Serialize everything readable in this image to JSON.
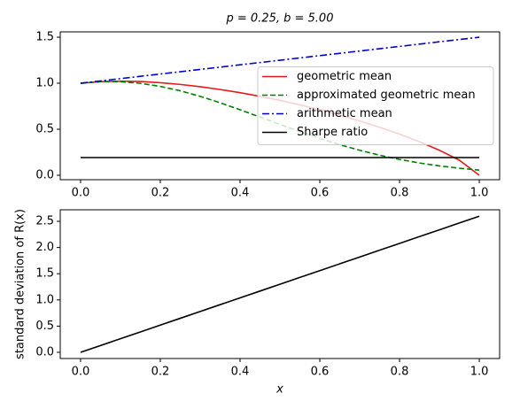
{
  "chart_data": [
    {
      "type": "line",
      "title": "p = 0.25, b = 5.00",
      "x": [
        0,
        0.05,
        0.1,
        0.15,
        0.2,
        0.25,
        0.3,
        0.35,
        0.4,
        0.45,
        0.5,
        0.55,
        0.6,
        0.65,
        0.7,
        0.75,
        0.8,
        0.85,
        0.9,
        0.95,
        1
      ],
      "series": [
        {
          "name": "geometric mean",
          "color": "#e41a1c",
          "linestyle": "solid",
          "values": [
            1,
            1.0175,
            1.0226,
            1.0184,
            1.006,
            0.987,
            0.9621,
            0.9318,
            0.8972,
            0.8577,
            0.8133,
            0.7645,
            0.7114,
            0.6532,
            0.5905,
            0.522,
            0.4472,
            0.3648,
            0.2722,
            0.1637,
            0
          ]
        },
        {
          "name": "approximated geometric mean",
          "color": "#008000",
          "linestyle": "dashed",
          "values": [
            1,
            1.0167,
            1.0164,
            0.9991,
            0.9656,
            0.9177,
            0.8575,
            0.7879,
            0.7118,
            0.6323,
            0.5523,
            0.4743,
            0.4005,
            0.3326,
            0.2715,
            0.218,
            0.172,
            0.1335,
            0.1019,
            0.0765,
            0.056
          ]
        },
        {
          "name": "arithmetic mean",
          "color": "#0000cc",
          "linestyle": "dashdot",
          "values": [
            1,
            1.025,
            1.05,
            1.075,
            1.1,
            1.125,
            1.15,
            1.175,
            1.2,
            1.225,
            1.25,
            1.275,
            1.3,
            1.325,
            1.35,
            1.375,
            1.4,
            1.425,
            1.45,
            1.475,
            1.5
          ]
        },
        {
          "name": "Sharpe ratio",
          "color": "#000000",
          "linestyle": "solid",
          "values": [
            0.1925,
            0.1925,
            0.1925,
            0.1925,
            0.1925,
            0.1925,
            0.1925,
            0.1925,
            0.1925,
            0.1925,
            0.1925,
            0.1925,
            0.1925,
            0.1925,
            0.1925,
            0.1925,
            0.1925,
            0.1925,
            0.1925,
            0.1925,
            0.1925
          ]
        }
      ],
      "xlim": [
        -0.051,
        1.051
      ],
      "xticks": [
        {
          "value": 0,
          "label": "0.0"
        },
        {
          "value": 0.2,
          "label": "0.2"
        },
        {
          "value": 0.4,
          "label": "0.4"
        },
        {
          "value": 0.6,
          "label": "0.6"
        },
        {
          "value": 0.8,
          "label": "0.8"
        },
        {
          "value": 1,
          "label": "1.0"
        }
      ],
      "ylim": [
        -0.048,
        1.558
      ],
      "yticks": [
        {
          "value": 0,
          "label": "0.0"
        },
        {
          "value": 0.5,
          "label": "0.5"
        },
        {
          "value": 1,
          "label": "1.0"
        },
        {
          "value": 1.5,
          "label": "1.5"
        }
      ],
      "legend": "center right"
    },
    {
      "type": "line",
      "xlabel": "x",
      "ylabel": "standard deviation of R(x)",
      "x": [
        0,
        0.05,
        0.1,
        0.15,
        0.2,
        0.25,
        0.3,
        0.35,
        0.4,
        0.45,
        0.5,
        0.55,
        0.6,
        0.65,
        0.7,
        0.75,
        0.8,
        0.85,
        0.9,
        0.95,
        1
      ],
      "series": [
        {
          "color": "#000000",
          "linestyle": "solid",
          "values": [
            0,
            0.1299,
            0.2598,
            0.3897,
            0.5196,
            0.6495,
            0.7794,
            0.9093,
            1.0392,
            1.1691,
            1.299,
            1.4289,
            1.5588,
            1.6887,
            1.8187,
            1.9486,
            2.0785,
            2.2084,
            2.3383,
            2.4682,
            2.5981
          ]
        }
      ],
      "xlim": [
        -0.051,
        1.051
      ],
      "xticks": [
        {
          "value": 0,
          "label": "0.0"
        },
        {
          "value": 0.2,
          "label": "0.2"
        },
        {
          "value": 0.4,
          "label": "0.4"
        },
        {
          "value": 0.6,
          "label": "0.6"
        },
        {
          "value": 0.8,
          "label": "0.8"
        },
        {
          "value": 1,
          "label": "1.0"
        }
      ],
      "ylim": [
        -0.118,
        2.72
      ],
      "yticks": [
        {
          "value": 0,
          "label": "0.0"
        },
        {
          "value": 0.5,
          "label": "0.5"
        },
        {
          "value": 1,
          "label": "1.0"
        },
        {
          "value": 1.5,
          "label": "1.5"
        },
        {
          "value": 2,
          "label": "2.0"
        },
        {
          "value": 2.5,
          "label": "2.5"
        }
      ]
    }
  ]
}
